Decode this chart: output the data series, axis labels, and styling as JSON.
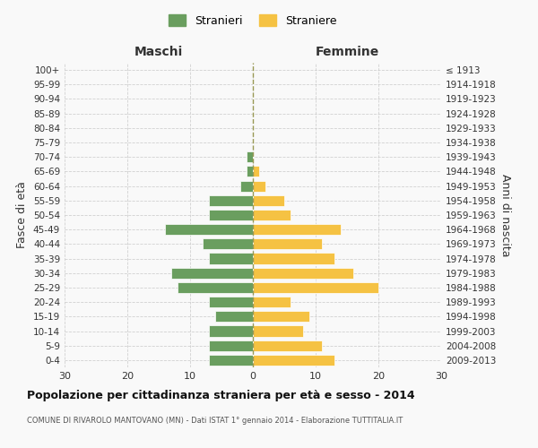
{
  "age_groups": [
    "100+",
    "95-99",
    "90-94",
    "85-89",
    "80-84",
    "75-79",
    "70-74",
    "65-69",
    "60-64",
    "55-59",
    "50-54",
    "45-49",
    "40-44",
    "35-39",
    "30-34",
    "25-29",
    "20-24",
    "15-19",
    "10-14",
    "5-9",
    "0-4"
  ],
  "birth_years": [
    "≤ 1913",
    "1914-1918",
    "1919-1923",
    "1924-1928",
    "1929-1933",
    "1934-1938",
    "1939-1943",
    "1944-1948",
    "1949-1953",
    "1954-1958",
    "1959-1963",
    "1964-1968",
    "1969-1973",
    "1974-1978",
    "1979-1983",
    "1984-1988",
    "1989-1993",
    "1994-1998",
    "1999-2003",
    "2004-2008",
    "2009-2013"
  ],
  "maschi": [
    0,
    0,
    0,
    0,
    0,
    0,
    1,
    1,
    2,
    7,
    7,
    14,
    8,
    7,
    13,
    12,
    7,
    6,
    7,
    7,
    7
  ],
  "femmine": [
    0,
    0,
    0,
    0,
    0,
    0,
    0,
    1,
    2,
    5,
    6,
    14,
    11,
    13,
    16,
    20,
    6,
    9,
    8,
    11,
    13
  ],
  "maschi_color": "#6a9e5f",
  "femmine_color": "#f5c243",
  "background_color": "#f9f9f9",
  "grid_color": "#cccccc",
  "title": "Popolazione per cittadinanza straniera per età e sesso - 2014",
  "subtitle": "COMUNE DI RIVAROLO MANTOVANO (MN) - Dati ISTAT 1° gennaio 2014 - Elaborazione TUTTITALIA.IT",
  "ylabel_left": "Fasce di età",
  "ylabel_right": "Anni di nascita",
  "xlabel_left": "Maschi",
  "xlabel_top_right": "Femmine",
  "legend_stranieri": "Stranieri",
  "legend_straniere": "Straniere",
  "xlim": 30
}
